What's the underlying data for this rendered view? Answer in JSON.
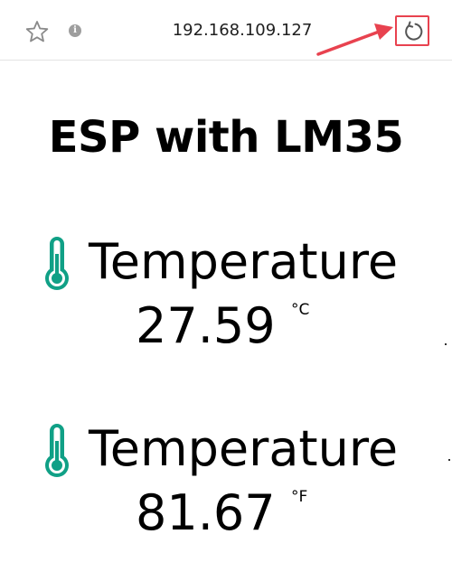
{
  "browser": {
    "url": "192.168.109.127",
    "icons": {
      "bookmark": "star-icon",
      "site_info": "info-icon",
      "info_glyph": "i",
      "reload": "reload-icon"
    },
    "annotation_color": "#e8424f"
  },
  "page": {
    "title": "ESP with LM35",
    "readings": [
      {
        "label": "Temperature",
        "value": "27.59",
        "unit": "°C",
        "icon": "thermometer-icon"
      },
      {
        "label": "Temperature",
        "value": "81.67",
        "unit": "°F",
        "icon": "thermometer-icon"
      }
    ],
    "icon_color": "#10a086"
  }
}
